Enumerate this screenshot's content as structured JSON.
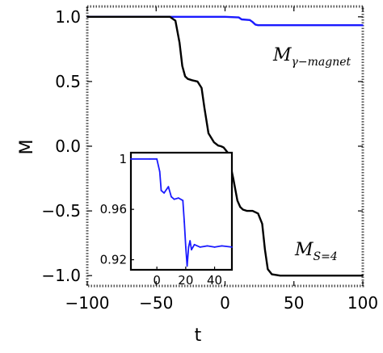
{
  "chart_data": [
    {
      "type": "line",
      "xlabel": "t",
      "ylabel": "M",
      "xlim": [
        -100,
        100
      ],
      "ylim": [
        -1.08,
        1.08
      ],
      "xticks": [
        -100,
        -50,
        0,
        50,
        100
      ],
      "xtick_labels": [
        "−100",
        "−50",
        "0",
        "50",
        "100"
      ],
      "yticks": [
        1.0,
        0.5,
        0.0,
        -0.5,
        -1.0
      ],
      "ytick_labels": [
        "1.0",
        "0.5",
        "0.0",
        "−0.5",
        "−1.0"
      ],
      "grid": false,
      "frame": "dotted",
      "series": [
        {
          "color": "#1a1aff",
          "label_main": "M",
          "label_sub": "γ−magnet",
          "x": [
            -100,
            -40,
            0,
            10,
            12,
            18,
            20,
            22,
            24,
            30,
            40,
            60,
            80,
            100
          ],
          "y": [
            1.0,
            1.0,
            1.0,
            0.995,
            0.98,
            0.975,
            0.96,
            0.94,
            0.935,
            0.935,
            0.935,
            0.935,
            0.935,
            0.935
          ]
        },
        {
          "color": "#000000",
          "label_main": "M",
          "label_sub": "S=4",
          "x": [
            -100,
            -40,
            -36,
            -33,
            -31,
            -29,
            -27,
            -24,
            -20,
            -17,
            -15,
            -12,
            -8,
            -5,
            -3,
            -1,
            2,
            6,
            9,
            11,
            13,
            16,
            20,
            24,
            27,
            29,
            31,
            34,
            40,
            60,
            80,
            100
          ],
          "y": [
            1.0,
            1.0,
            0.97,
            0.8,
            0.62,
            0.54,
            0.52,
            0.51,
            0.5,
            0.45,
            0.3,
            0.1,
            0.03,
            0.005,
            0.0,
            -0.01,
            -0.05,
            -0.25,
            -0.42,
            -0.47,
            -0.49,
            -0.5,
            -0.5,
            -0.52,
            -0.6,
            -0.8,
            -0.95,
            -0.99,
            -1.0,
            -1.0,
            -1.0,
            -1.0
          ]
        }
      ]
    },
    {
      "type": "line",
      "inset": true,
      "xlim": [
        -18,
        52
      ],
      "ylim": [
        0.912,
        1.005
      ],
      "xticks": [
        0,
        20,
        40
      ],
      "xtick_labels": [
        "0",
        "20",
        "40"
      ],
      "yticks": [
        1.0,
        0.96,
        0.92
      ],
      "ytick_labels": [
        "1",
        "0.96",
        "0.92"
      ],
      "series": [
        {
          "color": "#1a1aff",
          "x": [
            -18,
            -5,
            0,
            2,
            3,
            5,
            8,
            10,
            12,
            15,
            18,
            19,
            20,
            21,
            22,
            23,
            24,
            26,
            30,
            35,
            40,
            45,
            52
          ],
          "y": [
            1.0,
            1.0,
            1.0,
            0.99,
            0.975,
            0.973,
            0.978,
            0.97,
            0.968,
            0.969,
            0.967,
            0.95,
            0.93,
            0.915,
            0.93,
            0.935,
            0.928,
            0.932,
            0.93,
            0.931,
            0.93,
            0.931,
            0.93
          ]
        }
      ]
    }
  ]
}
